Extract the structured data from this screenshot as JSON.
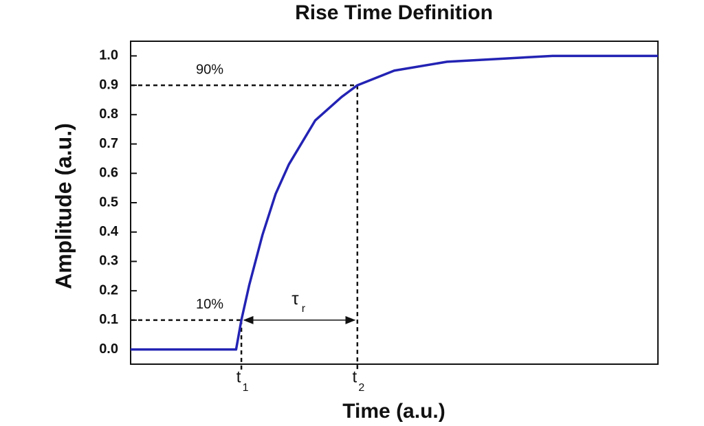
{
  "chart_data": {
    "type": "line",
    "title": "Rise Time Definition",
    "x_label": "Time (a.u.)",
    "y_label": "Amplitude (a.u.)",
    "x": [
      0,
      2,
      2.1,
      2.25,
      2.5,
      2.75,
      3,
      3.5,
      4,
      4.3,
      5,
      6,
      7,
      8,
      10
    ],
    "series": [
      {
        "color": "#2323b4",
        "values": [
          0,
          0,
          0.1,
          0.22,
          0.39,
          0.53,
          0.63,
          0.78,
          0.86,
          0.9,
          0.95,
          0.98,
          0.99,
          1.0,
          1.0
        ]
      }
    ],
    "xlim": [
      0,
      10
    ],
    "ylim": [
      -0.05,
      1.05
    ],
    "yticks": [
      {
        "value": 0,
        "label": "0.0"
      },
      0.1,
      0.2,
      0.3,
      0.4,
      0.5,
      0.6,
      0.7,
      0.8,
      0.9,
      {
        "value": 1,
        "label": "1.0"
      }
    ],
    "levels": [
      {
        "y": 0.1,
        "label": "10%",
        "x": 2.1,
        "time": "t",
        "sub": "1"
      },
      {
        "y": 0.9,
        "label": "90%",
        "x": 4.3,
        "time": "t",
        "sub": "2"
      }
    ],
    "interval": {
      "symbol": "τ",
      "sub": "r"
    }
  }
}
